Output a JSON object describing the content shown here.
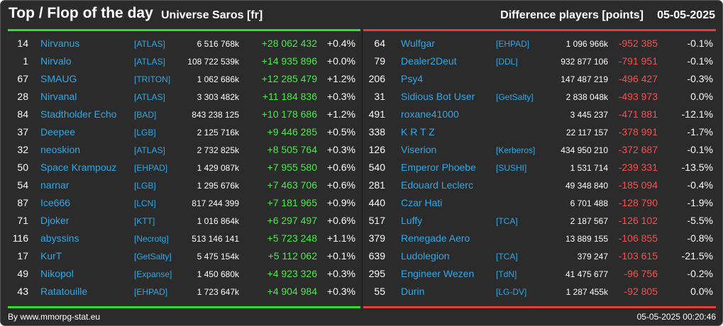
{
  "header": {
    "title": "Top / Flop of the day",
    "universe": "Universe Saros [fr]",
    "metric": "Difference players [points]",
    "date": "05-05-2025"
  },
  "colors": {
    "top_bar": "#33dd33",
    "flop_bar": "#e03f3f",
    "positive": "#44ee44",
    "negative": "#ff4d4d",
    "link": "#2ea8e8"
  },
  "top": [
    {
      "rank": "14",
      "name": "Nirvanus",
      "alliance": "[ATLAS]",
      "points": "6 516 768k",
      "diff": "+28 062 432",
      "pct": "+0.4%"
    },
    {
      "rank": "1",
      "name": "Nirvalo",
      "alliance": "[ATLAS]",
      "points": "108 722 539k",
      "diff": "+14 935 896",
      "pct": "+0.0%"
    },
    {
      "rank": "67",
      "name": "SMAUG",
      "alliance": "[TRITON]",
      "points": "1 062 686k",
      "diff": "+12 285 479",
      "pct": "+1.2%"
    },
    {
      "rank": "28",
      "name": "Nirvanal",
      "alliance": "[ATLAS]",
      "points": "3 303 482k",
      "diff": "+11 184 836",
      "pct": "+0.3%"
    },
    {
      "rank": "84",
      "name": "Stadtholder Echo",
      "alliance": "[BAD]",
      "points": "843 238 125",
      "diff": "+10 178 686",
      "pct": "+1.2%"
    },
    {
      "rank": "37",
      "name": "Deepee",
      "alliance": "[LGB]",
      "points": "2 125 716k",
      "diff": "+9 446 285",
      "pct": "+0.5%"
    },
    {
      "rank": "32",
      "name": "neoskion",
      "alliance": "[ATLAS]",
      "points": "2 732 825k",
      "diff": "+8 505 764",
      "pct": "+0.3%"
    },
    {
      "rank": "50",
      "name": "Space Krampouz",
      "alliance": "[EHPAD]",
      "points": "1 429 087k",
      "diff": "+7 955 580",
      "pct": "+0.6%"
    },
    {
      "rank": "54",
      "name": "narnar",
      "alliance": "[LGB]",
      "points": "1 295 676k",
      "diff": "+7 463 706",
      "pct": "+0.6%"
    },
    {
      "rank": "87",
      "name": "Ice666",
      "alliance": "[LCN]",
      "points": "817 244 399",
      "diff": "+7 181 965",
      "pct": "+0.9%"
    },
    {
      "rank": "71",
      "name": "Djoker",
      "alliance": "[KTT]",
      "points": "1 016 864k",
      "diff": "+6 297 497",
      "pct": "+0.6%"
    },
    {
      "rank": "116",
      "name": "abyssins",
      "alliance": "[Necrotg]",
      "points": "513 146 141",
      "diff": "+5 723 248",
      "pct": "+1.1%"
    },
    {
      "rank": "17",
      "name": "KurT",
      "alliance": "[GetSalty]",
      "points": "5 475 154k",
      "diff": "+5 112 062",
      "pct": "+0.1%"
    },
    {
      "rank": "49",
      "name": "Nikopol",
      "alliance": "[Expanse]",
      "points": "1 450 680k",
      "diff": "+4 923 326",
      "pct": "+0.3%"
    },
    {
      "rank": "43",
      "name": "Ratatouille",
      "alliance": "[EHPAD]",
      "points": "1 723 647k",
      "diff": "+4 904 984",
      "pct": "+0.3%"
    }
  ],
  "flop": [
    {
      "rank": "64",
      "name": "Wulfgar",
      "alliance": "[EHPAD]",
      "points": "1 096 966k",
      "diff": "-952 385",
      "pct": "-0.1%"
    },
    {
      "rank": "79",
      "name": "Dealer2Deut",
      "alliance": "[DDL]",
      "points": "932 877 106",
      "diff": "-791 951",
      "pct": "-0.1%"
    },
    {
      "rank": "206",
      "name": "Psy4",
      "alliance": "",
      "points": "147 487 219",
      "diff": "-496 427",
      "pct": "-0.3%"
    },
    {
      "rank": "31",
      "name": "Sidious Bot User",
      "alliance": "[GetSalty]",
      "points": "2 838 048k",
      "diff": "-493 973",
      "pct": "0.0%"
    },
    {
      "rank": "491",
      "name": "roxane41000",
      "alliance": "",
      "points": "3 445 237",
      "diff": "-471 881",
      "pct": "-12.1%"
    },
    {
      "rank": "338",
      "name": "K R T Z",
      "alliance": "",
      "points": "22 117 157",
      "diff": "-378 991",
      "pct": "-1.7%"
    },
    {
      "rank": "126",
      "name": "Viserion",
      "alliance": "[Kerberos]",
      "points": "434 950 210",
      "diff": "-372 687",
      "pct": "-0.1%"
    },
    {
      "rank": "540",
      "name": "Emperor Phoebe",
      "alliance": "[SUSHI]",
      "points": "1 531 714",
      "diff": "-239 331",
      "pct": "-13.5%"
    },
    {
      "rank": "281",
      "name": "Edouard Leclerc",
      "alliance": "",
      "points": "49 348 840",
      "diff": "-185 094",
      "pct": "-0.4%"
    },
    {
      "rank": "440",
      "name": "Czar Hati",
      "alliance": "",
      "points": "6 701 488",
      "diff": "-128 790",
      "pct": "-1.9%"
    },
    {
      "rank": "517",
      "name": "Luffy",
      "alliance": "[TCA]",
      "points": "2 187 567",
      "diff": "-126 102",
      "pct": "-5.5%"
    },
    {
      "rank": "379",
      "name": "Renegade Aero",
      "alliance": "",
      "points": "13 889 155",
      "diff": "-106 855",
      "pct": "-0.8%"
    },
    {
      "rank": "639",
      "name": "Ludolegion",
      "alliance": "[TCA]",
      "points": "379 247",
      "diff": "-103 615",
      "pct": "-21.5%"
    },
    {
      "rank": "295",
      "name": "Engineer Wezen",
      "alliance": "[TdN]",
      "points": "41 475 677",
      "diff": "-96 756",
      "pct": "-0.2%"
    },
    {
      "rank": "55",
      "name": "Durin",
      "alliance": "[LG-DV]",
      "points": "1 287 455k",
      "diff": "-92 805",
      "pct": "0.0%"
    }
  ],
  "footer": {
    "credit": "By www.mmorpg-stat.eu",
    "timestamp": "05-05-2025 00:20:46"
  }
}
